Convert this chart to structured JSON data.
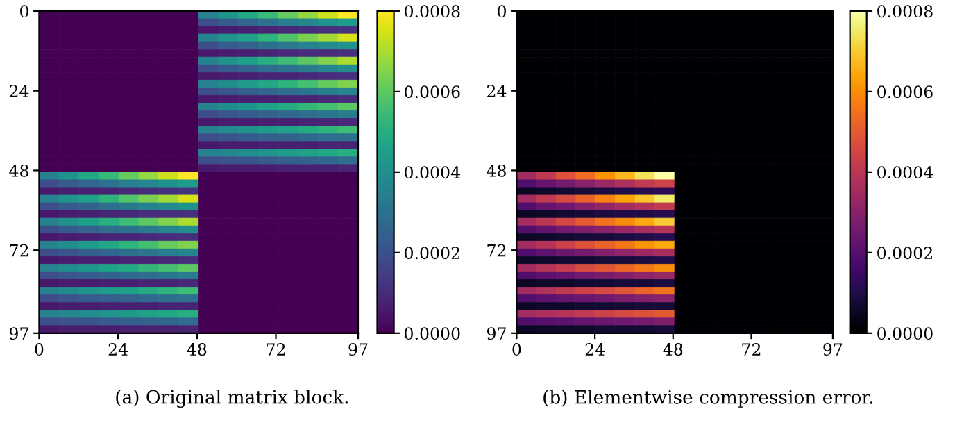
{
  "chart_data": [
    {
      "type": "heatmap",
      "annotations": [
        "(a) Original matrix block."
      ],
      "xlim": [
        0,
        97
      ],
      "ylim": [
        97,
        0
      ],
      "xticks": [
        0,
        24,
        48,
        72,
        97
      ],
      "yticks": [
        0,
        24,
        48,
        72,
        97
      ],
      "clim": [
        0,
        0.0008
      ],
      "cticks": [
        {
          "value": 0,
          "label": "0.0000"
        },
        {
          "value": 0.0002,
          "label": "0.0002"
        },
        {
          "value": 0.0004,
          "label": "0.0004"
        },
        {
          "value": 0.0006,
          "label": "0.0006"
        },
        {
          "value": 0.0008,
          "label": "0.0008"
        }
      ],
      "cells": [
        [
          0,
          0,
          0,
          0,
          0,
          0,
          0,
          0,
          0.00035,
          0.00041,
          0.00048,
          0.00054,
          0.00061,
          0.00067,
          0.00074,
          0.0008
        ],
        [
          0,
          0,
          0,
          0,
          0,
          0,
          0,
          0,
          0.00019,
          0.00023,
          0.00026,
          0.0003,
          0.00034,
          0.00037,
          0.00041,
          0.00044
        ],
        [
          0,
          0,
          0,
          0,
          0,
          0,
          0,
          0,
          5e-05,
          6e-05,
          7e-05,
          8e-05,
          9e-05,
          0.0001,
          0.00011,
          0.00012
        ],
        [
          0,
          0,
          0,
          0,
          0,
          0,
          0,
          0,
          0.00035,
          0.00041,
          0.00046,
          0.00052,
          0.00058,
          0.00064,
          0.00069,
          0.00075
        ],
        [
          0,
          0,
          0,
          0,
          0,
          0,
          0,
          0,
          0.00019,
          0.00023,
          0.00025,
          0.00029,
          0.00032,
          0.00035,
          0.00038,
          0.00041
        ],
        [
          0,
          0,
          0,
          0,
          0,
          0,
          0,
          0,
          5e-05,
          6e-05,
          7e-05,
          8e-05,
          9e-05,
          0.0001,
          0.0001,
          0.00011
        ],
        [
          0,
          0,
          0,
          0,
          0,
          0,
          0,
          0,
          0.00035,
          0.0004,
          0.00045,
          0.0005,
          0.00055,
          0.0006,
          0.00065,
          0.0007
        ],
        [
          0,
          0,
          0,
          0,
          0,
          0,
          0,
          0,
          0.00019,
          0.00022,
          0.00025,
          0.00028,
          0.0003,
          0.00033,
          0.00036,
          0.00039
        ],
        [
          0,
          0,
          0,
          0,
          0,
          0,
          0,
          0,
          5e-05,
          6e-05,
          7e-05,
          8e-05,
          8e-05,
          9e-05,
          0.0001,
          0.00011
        ],
        [
          0,
          0,
          0,
          0,
          0,
          0,
          0,
          0,
          0.00035,
          0.00039,
          0.00044,
          0.00048,
          0.00052,
          0.00056,
          0.00061,
          0.00065
        ],
        [
          0,
          0,
          0,
          0,
          0,
          0,
          0,
          0,
          0.00019,
          0.00021,
          0.00024,
          0.00026,
          0.00029,
          0.00031,
          0.00034,
          0.00036
        ],
        [
          0,
          0,
          0,
          0,
          0,
          0,
          0,
          0,
          5e-05,
          6e-05,
          7e-05,
          7e-05,
          8e-05,
          8e-05,
          9e-05,
          0.0001
        ],
        [
          0,
          0,
          0,
          0,
          0,
          0,
          0,
          0,
          0.00035,
          0.00039,
          0.00042,
          0.00046,
          0.00049,
          0.00053,
          0.00056,
          0.0006
        ],
        [
          0,
          0,
          0,
          0,
          0,
          0,
          0,
          0,
          0.00019,
          0.00021,
          0.00023,
          0.00025,
          0.00027,
          0.00029,
          0.00031,
          0.00033
        ],
        [
          0,
          0,
          0,
          0,
          0,
          0,
          0,
          0,
          5e-05,
          6e-05,
          6e-05,
          7e-05,
          7e-05,
          8e-05,
          8e-05,
          9e-05
        ],
        [
          0,
          0,
          0,
          0,
          0,
          0,
          0,
          0,
          0.00035,
          0.00038,
          0.00041,
          0.00044,
          0.00046,
          0.00049,
          0.00052,
          0.00055
        ],
        [
          0,
          0,
          0,
          0,
          0,
          0,
          0,
          0,
          0.00019,
          0.00021,
          0.00023,
          0.00024,
          0.00025,
          0.00027,
          0.00029,
          0.0003
        ],
        [
          0,
          0,
          0,
          0,
          0,
          0,
          0,
          0,
          5e-05,
          6e-05,
          6e-05,
          7e-05,
          7e-05,
          7e-05,
          8e-05,
          8e-05
        ],
        [
          0,
          0,
          0,
          0,
          0,
          0,
          0,
          0,
          0.00035,
          0.00037,
          0.00039,
          0.00041,
          0.00044,
          0.00046,
          0.00048,
          0.0005
        ],
        [
          0,
          0,
          0,
          0,
          0,
          0,
          0,
          0,
          0.00019,
          0.0002,
          0.00021,
          0.00023,
          0.00024,
          0.00025,
          0.00026,
          0.00028
        ],
        [
          0,
          0,
          0,
          0,
          0,
          0,
          0,
          0,
          5e-05,
          6e-05,
          6e-05,
          6e-05,
          7e-05,
          7e-05,
          7e-05,
          8e-05
        ],
        [
          0.00035,
          0.00041,
          0.00048,
          0.00054,
          0.00061,
          0.00067,
          0.00074,
          0.0008,
          0,
          0,
          0,
          0,
          0,
          0,
          0,
          0
        ],
        [
          0.00019,
          0.00023,
          0.00026,
          0.0003,
          0.00034,
          0.00037,
          0.00041,
          0.00044,
          0,
          0,
          0,
          0,
          0,
          0,
          0,
          0
        ],
        [
          5e-05,
          6e-05,
          7e-05,
          8e-05,
          9e-05,
          0.0001,
          0.00011,
          0.00012,
          0,
          0,
          0,
          0,
          0,
          0,
          0,
          0
        ],
        [
          0.00035,
          0.00041,
          0.00046,
          0.00052,
          0.00058,
          0.00064,
          0.00069,
          0.00075,
          0,
          0,
          0,
          0,
          0,
          0,
          0,
          0
        ],
        [
          0.00019,
          0.00023,
          0.00025,
          0.00029,
          0.00032,
          0.00035,
          0.00038,
          0.00041,
          0,
          0,
          0,
          0,
          0,
          0,
          0,
          0
        ],
        [
          5e-05,
          6e-05,
          7e-05,
          8e-05,
          9e-05,
          0.0001,
          0.0001,
          0.00011,
          0,
          0,
          0,
          0,
          0,
          0,
          0,
          0
        ],
        [
          0.00035,
          0.0004,
          0.00045,
          0.0005,
          0.00055,
          0.0006,
          0.00065,
          0.0007,
          0,
          0,
          0,
          0,
          0,
          0,
          0,
          0
        ],
        [
          0.00019,
          0.00022,
          0.00025,
          0.00028,
          0.0003,
          0.00033,
          0.00036,
          0.00039,
          0,
          0,
          0,
          0,
          0,
          0,
          0,
          0
        ],
        [
          5e-05,
          6e-05,
          7e-05,
          8e-05,
          8e-05,
          9e-05,
          0.0001,
          0.00011,
          0,
          0,
          0,
          0,
          0,
          0,
          0,
          0
        ],
        [
          0.00035,
          0.00039,
          0.00044,
          0.00048,
          0.00052,
          0.00056,
          0.00061,
          0.00065,
          0,
          0,
          0,
          0,
          0,
          0,
          0,
          0
        ],
        [
          0.00019,
          0.00021,
          0.00024,
          0.00026,
          0.00029,
          0.00031,
          0.00034,
          0.00036,
          0,
          0,
          0,
          0,
          0,
          0,
          0,
          0
        ],
        [
          5e-05,
          6e-05,
          7e-05,
          7e-05,
          8e-05,
          8e-05,
          9e-05,
          0.0001,
          0,
          0,
          0,
          0,
          0,
          0,
          0,
          0
        ],
        [
          0.00035,
          0.00039,
          0.00042,
          0.00046,
          0.00049,
          0.00053,
          0.00056,
          0.0006,
          0,
          0,
          0,
          0,
          0,
          0,
          0,
          0
        ],
        [
          0.00019,
          0.00021,
          0.00023,
          0.00025,
          0.00027,
          0.00029,
          0.00031,
          0.00033,
          0,
          0,
          0,
          0,
          0,
          0,
          0,
          0
        ],
        [
          5e-05,
          6e-05,
          6e-05,
          7e-05,
          7e-05,
          8e-05,
          8e-05,
          9e-05,
          0,
          0,
          0,
          0,
          0,
          0,
          0,
          0
        ],
        [
          0.00035,
          0.00038,
          0.00041,
          0.00044,
          0.00046,
          0.00049,
          0.00052,
          0.00055,
          0,
          0,
          0,
          0,
          0,
          0,
          0,
          0
        ],
        [
          0.00019,
          0.00021,
          0.00023,
          0.00024,
          0.00025,
          0.00027,
          0.00029,
          0.0003,
          0,
          0,
          0,
          0,
          0,
          0,
          0,
          0
        ],
        [
          5e-05,
          6e-05,
          6e-05,
          7e-05,
          7e-05,
          7e-05,
          8e-05,
          8e-05,
          0,
          0,
          0,
          0,
          0,
          0,
          0,
          0
        ],
        [
          0.00035,
          0.00037,
          0.00039,
          0.00041,
          0.00044,
          0.00046,
          0.00048,
          0.0005,
          0,
          0,
          0,
          0,
          0,
          0,
          0,
          0
        ],
        [
          0.00019,
          0.0002,
          0.00021,
          0.00023,
          0.00024,
          0.00025,
          0.00026,
          0.00028,
          0,
          0,
          0,
          0,
          0,
          0,
          0,
          0
        ],
        [
          5e-05,
          6e-05,
          6e-05,
          6e-05,
          7e-05,
          7e-05,
          7e-05,
          8e-05,
          0,
          0,
          0,
          0,
          0,
          0,
          0,
          0
        ]
      ]
    },
    {
      "type": "heatmap",
      "annotations": [
        "(b) Elementwise compression error."
      ],
      "xlim": [
        0,
        97
      ],
      "ylim": [
        97,
        0
      ],
      "xticks": [
        0,
        24,
        48,
        72,
        97
      ],
      "yticks": [
        0,
        24,
        48,
        72,
        97
      ],
      "clim": [
        0,
        0.0008
      ],
      "cticks": [
        {
          "value": 0,
          "label": "0.0000"
        },
        {
          "value": 0.0002,
          "label": "0.0002"
        },
        {
          "value": 0.0004,
          "label": "0.0004"
        },
        {
          "value": 0.0006,
          "label": "0.0006"
        },
        {
          "value": 0.0008,
          "label": "0.0008"
        }
      ],
      "cells": [
        [
          0,
          0,
          0,
          0,
          0,
          0,
          0,
          0,
          0,
          0,
          0,
          0,
          0,
          0,
          0,
          0
        ],
        [
          0,
          0,
          0,
          0,
          0,
          0,
          0,
          0,
          0,
          0,
          0,
          0,
          0,
          0,
          0,
          0
        ],
        [
          0,
          0,
          0,
          0,
          0,
          0,
          0,
          0,
          0,
          0,
          0,
          0,
          0,
          0,
          0,
          0
        ],
        [
          0,
          0,
          0,
          0,
          0,
          0,
          0,
          0,
          0,
          0,
          0,
          0,
          0,
          0,
          0,
          0
        ],
        [
          0,
          0,
          0,
          0,
          0,
          0,
          0,
          0,
          0,
          0,
          0,
          0,
          0,
          0,
          0,
          0
        ],
        [
          0,
          0,
          0,
          0,
          0,
          0,
          0,
          0,
          0,
          0,
          0,
          0,
          0,
          0,
          0,
          0
        ],
        [
          0,
          0,
          0,
          0,
          0,
          0,
          0,
          0,
          0,
          0,
          0,
          0,
          0,
          0,
          0,
          0
        ],
        [
          0,
          0,
          0,
          0,
          0,
          0,
          0,
          0,
          0,
          0,
          0,
          0,
          0,
          0,
          0,
          0
        ],
        [
          0,
          0,
          0,
          0,
          0,
          0,
          0,
          0,
          0,
          0,
          0,
          0,
          0,
          0,
          0,
          0
        ],
        [
          0,
          0,
          0,
          0,
          0,
          0,
          0,
          0,
          0,
          0,
          0,
          0,
          0,
          0,
          0,
          0
        ],
        [
          0,
          0,
          0,
          0,
          0,
          0,
          0,
          0,
          0,
          0,
          0,
          0,
          0,
          0,
          0,
          0
        ],
        [
          0,
          0,
          0,
          0,
          0,
          0,
          0,
          0,
          0,
          0,
          0,
          0,
          0,
          0,
          0,
          0
        ],
        [
          0,
          0,
          0,
          0,
          0,
          0,
          0,
          0,
          0,
          0,
          0,
          0,
          0,
          0,
          0,
          0
        ],
        [
          0,
          0,
          0,
          0,
          0,
          0,
          0,
          0,
          0,
          0,
          0,
          0,
          0,
          0,
          0,
          0
        ],
        [
          0,
          0,
          0,
          0,
          0,
          0,
          0,
          0,
          0,
          0,
          0,
          0,
          0,
          0,
          0,
          0
        ],
        [
          0,
          0,
          0,
          0,
          0,
          0,
          0,
          0,
          0,
          0,
          0,
          0,
          0,
          0,
          0,
          0
        ],
        [
          0,
          0,
          0,
          0,
          0,
          0,
          0,
          0,
          0,
          0,
          0,
          0,
          0,
          0,
          0,
          0
        ],
        [
          0,
          0,
          0,
          0,
          0,
          0,
          0,
          0,
          0,
          0,
          0,
          0,
          0,
          0,
          0,
          0
        ],
        [
          0,
          0,
          0,
          0,
          0,
          0,
          0,
          0,
          0,
          0,
          0,
          0,
          0,
          0,
          0,
          0
        ],
        [
          0,
          0,
          0,
          0,
          0,
          0,
          0,
          0,
          0,
          0,
          0,
          0,
          0,
          0,
          0,
          0
        ],
        [
          0,
          0,
          0,
          0,
          0,
          0,
          0,
          0,
          0,
          0,
          0,
          0,
          0,
          0,
          0,
          0
        ],
        [
          0.00035,
          0.00041,
          0.00048,
          0.00054,
          0.00061,
          0.00067,
          0.00074,
          0.0008,
          0,
          0,
          0,
          0,
          0,
          0,
          0,
          0
        ],
        [
          0.00019,
          0.00023,
          0.00026,
          0.0003,
          0.00034,
          0.00037,
          0.00041,
          0.00044,
          0,
          0,
          0,
          0,
          0,
          0,
          0,
          0
        ],
        [
          5e-05,
          6e-05,
          7e-05,
          8e-05,
          9e-05,
          0.0001,
          0.00011,
          0.00012,
          0,
          0,
          0,
          0,
          0,
          0,
          0,
          0
        ],
        [
          0.00035,
          0.00041,
          0.00046,
          0.00052,
          0.00058,
          0.00064,
          0.00069,
          0.00075,
          0,
          0,
          0,
          0,
          0,
          0,
          0,
          0
        ],
        [
          0.00019,
          0.00023,
          0.00025,
          0.00029,
          0.00032,
          0.00035,
          0.00038,
          0.00041,
          0,
          0,
          0,
          0,
          0,
          0,
          0,
          0
        ],
        [
          5e-05,
          6e-05,
          7e-05,
          8e-05,
          9e-05,
          0.0001,
          0.0001,
          0.00011,
          0,
          0,
          0,
          0,
          0,
          0,
          0,
          0
        ],
        [
          0.00035,
          0.0004,
          0.00045,
          0.0005,
          0.00055,
          0.0006,
          0.00065,
          0.0007,
          0,
          0,
          0,
          0,
          0,
          0,
          0,
          0
        ],
        [
          0.00019,
          0.00022,
          0.00025,
          0.00028,
          0.0003,
          0.00033,
          0.00036,
          0.00039,
          0,
          0,
          0,
          0,
          0,
          0,
          0,
          0
        ],
        [
          5e-05,
          6e-05,
          7e-05,
          8e-05,
          8e-05,
          9e-05,
          0.0001,
          0.00011,
          0,
          0,
          0,
          0,
          0,
          0,
          0,
          0
        ],
        [
          0.00035,
          0.00039,
          0.00044,
          0.00048,
          0.00052,
          0.00056,
          0.00061,
          0.00065,
          0,
          0,
          0,
          0,
          0,
          0,
          0,
          0
        ],
        [
          0.00019,
          0.00021,
          0.00024,
          0.00026,
          0.00029,
          0.00031,
          0.00034,
          0.00036,
          0,
          0,
          0,
          0,
          0,
          0,
          0,
          0
        ],
        [
          5e-05,
          6e-05,
          7e-05,
          7e-05,
          8e-05,
          8e-05,
          9e-05,
          0.0001,
          0,
          0,
          0,
          0,
          0,
          0,
          0,
          0
        ],
        [
          0.00035,
          0.00039,
          0.00042,
          0.00046,
          0.00049,
          0.00053,
          0.00056,
          0.0006,
          0,
          0,
          0,
          0,
          0,
          0,
          0,
          0
        ],
        [
          0.00019,
          0.00021,
          0.00023,
          0.00025,
          0.00027,
          0.00029,
          0.00031,
          0.00033,
          0,
          0,
          0,
          0,
          0,
          0,
          0,
          0
        ],
        [
          5e-05,
          6e-05,
          6e-05,
          7e-05,
          7e-05,
          8e-05,
          8e-05,
          9e-05,
          0,
          0,
          0,
          0,
          0,
          0,
          0,
          0
        ],
        [
          0.00035,
          0.00038,
          0.00041,
          0.00044,
          0.00046,
          0.00049,
          0.00052,
          0.00055,
          0,
          0,
          0,
          0,
          0,
          0,
          0,
          0
        ],
        [
          0.00019,
          0.00021,
          0.00023,
          0.00024,
          0.00025,
          0.00027,
          0.00029,
          0.0003,
          0,
          0,
          0,
          0,
          0,
          0,
          0,
          0
        ],
        [
          5e-05,
          6e-05,
          6e-05,
          7e-05,
          7e-05,
          7e-05,
          8e-05,
          8e-05,
          0,
          0,
          0,
          0,
          0,
          0,
          0,
          0
        ],
        [
          0.00035,
          0.00037,
          0.00039,
          0.00041,
          0.00044,
          0.00046,
          0.00048,
          0.0005,
          0,
          0,
          0,
          0,
          0,
          0,
          0,
          0
        ],
        [
          0.00019,
          0.0002,
          0.00021,
          0.00023,
          0.00024,
          0.00025,
          0.00026,
          0.00028,
          0,
          0,
          0,
          0,
          0,
          0,
          0,
          0
        ],
        [
          5e-05,
          6e-05,
          6e-05,
          6e-05,
          7e-05,
          7e-05,
          7e-05,
          8e-05,
          0,
          0,
          0,
          0,
          0,
          0,
          0,
          0
        ]
      ]
    }
  ]
}
